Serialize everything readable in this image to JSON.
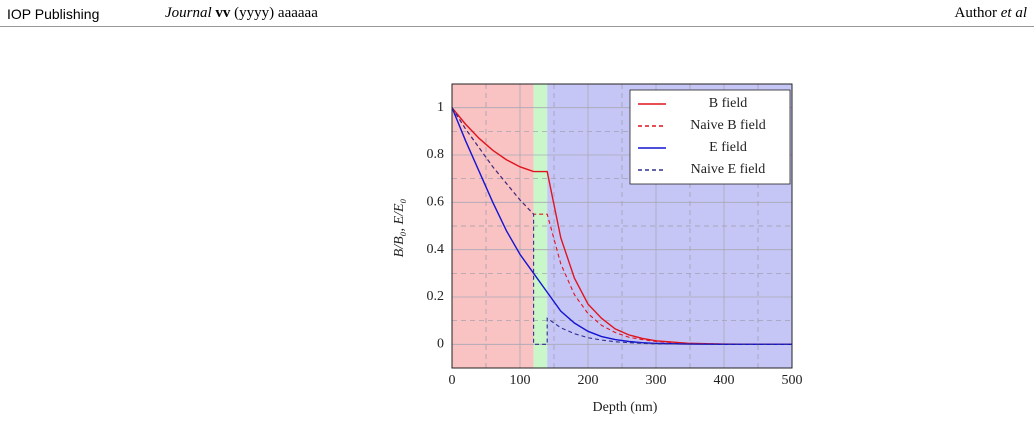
{
  "header": {
    "publisher": "IOP Publishing",
    "journal": "Journal",
    "volume": "vv",
    "year": "(yyyy)",
    "article": "aaaaaa",
    "author": "Author",
    "et_al": "et al"
  },
  "chart_data": {
    "type": "line",
    "xlabel": "Depth (nm)",
    "ylabel": "B/B₀, E/E₀",
    "xlim": [
      0,
      500
    ],
    "ylim": [
      -0.1,
      1.1
    ],
    "xticks": [
      0,
      100,
      200,
      300,
      400,
      500
    ],
    "yticks": [
      0,
      0.2,
      0.4,
      0.6,
      0.8,
      1
    ],
    "grid": true,
    "legend": "upper right",
    "regions": [
      {
        "from": 0,
        "to": 120,
        "color": "#f9c3c3"
      },
      {
        "from": 120,
        "to": 140,
        "color": "#c9f7c9"
      },
      {
        "from": 140,
        "to": 500,
        "color": "#c6c6f6"
      }
    ],
    "series": [
      {
        "name": "B field",
        "color": "#e0141e",
        "dash": false,
        "x": [
          0,
          20,
          40,
          60,
          80,
          100,
          120,
          140,
          160,
          180,
          200,
          220,
          240,
          260,
          280,
          300,
          350,
          400,
          450,
          500
        ],
        "values": [
          1,
          0.93,
          0.87,
          0.82,
          0.78,
          0.75,
          0.73,
          0.73,
          0.45,
          0.28,
          0.17,
          0.11,
          0.065,
          0.04,
          0.025,
          0.015,
          0.004,
          0.001,
          0,
          0
        ]
      },
      {
        "name": "Naive B field",
        "color": "#e0141e",
        "dash": true,
        "x": [
          0,
          20,
          40,
          60,
          80,
          100,
          120,
          140,
          160,
          180,
          200,
          220,
          240,
          260,
          280,
          300,
          350,
          400,
          500
        ],
        "values": [
          1,
          0.91,
          0.83,
          0.75,
          0.68,
          0.61,
          0.55,
          0.55,
          0.34,
          0.21,
          0.13,
          0.08,
          0.05,
          0.03,
          0.02,
          0.012,
          0.003,
          0.001,
          0
        ]
      },
      {
        "name": "E field",
        "color": "#1414d2",
        "dash": false,
        "x": [
          0,
          20,
          40,
          60,
          80,
          100,
          120,
          140,
          160,
          180,
          200,
          220,
          240,
          260,
          280,
          300,
          350,
          400,
          500
        ],
        "values": [
          1,
          0.86,
          0.73,
          0.6,
          0.48,
          0.38,
          0.3,
          0.22,
          0.14,
          0.09,
          0.055,
          0.033,
          0.02,
          0.012,
          0.007,
          0.004,
          0.001,
          0,
          0
        ]
      },
      {
        "name": "Naive E field",
        "color": "#303090",
        "dash": true,
        "x": [
          0,
          20,
          40,
          60,
          80,
          100,
          120,
          120,
          140,
          140,
          160,
          180,
          200,
          220,
          240,
          260,
          280,
          300,
          350,
          400,
          500
        ],
        "values": [
          1,
          0.91,
          0.83,
          0.75,
          0.68,
          0.61,
          0.55,
          0,
          0,
          0.11,
          0.07,
          0.045,
          0.028,
          0.018,
          0.011,
          0.007,
          0.004,
          0.002,
          0.001,
          0,
          0
        ]
      }
    ]
  }
}
